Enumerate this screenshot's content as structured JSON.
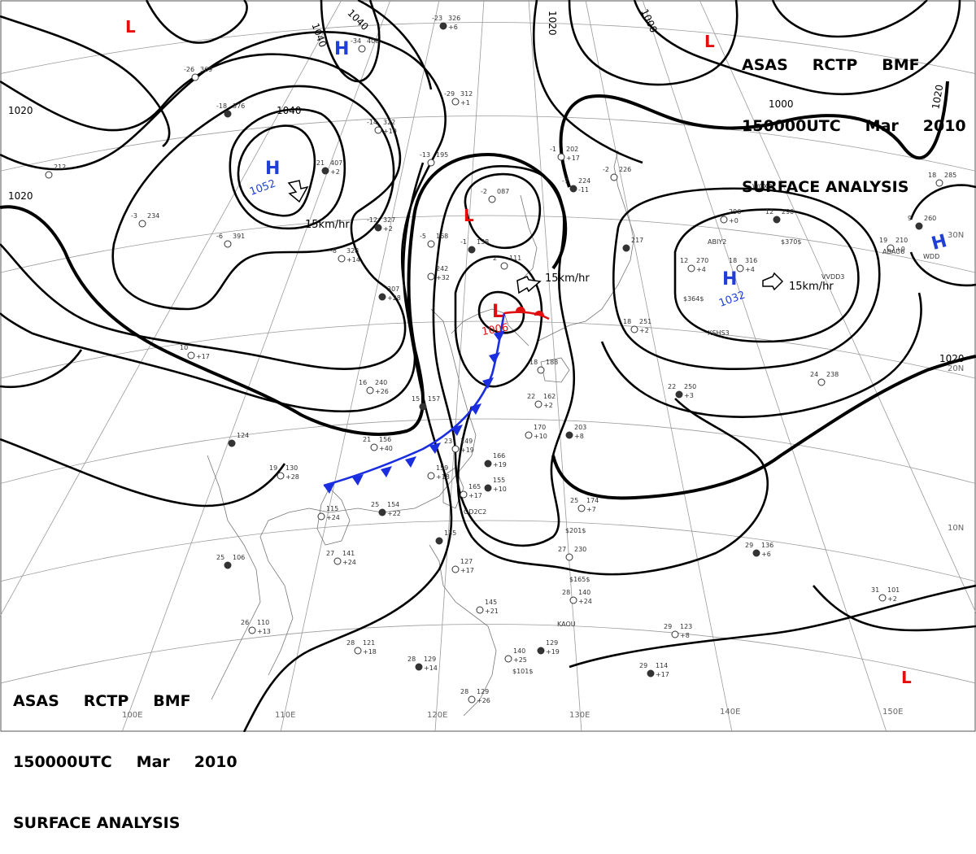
{
  "header": {
    "line1_parts": [
      "ASAS",
      "RCTP",
      "BMF"
    ],
    "line2_parts": [
      "150000UTC",
      "Mar",
      "2010"
    ],
    "line3": "SURFACE ANALYSIS"
  },
  "systems": {
    "highs": [
      {
        "symbol": "H",
        "value": "1052",
        "color": "#1f3fd6"
      },
      {
        "symbol": "H",
        "value": "1032",
        "color": "#1f3fd6"
      },
      {
        "symbol": "H",
        "value": "",
        "color": "#1f3fd6"
      },
      {
        "symbol": "H",
        "value": "",
        "color": "#1f3fd6"
      }
    ],
    "lows": [
      {
        "symbol": "L",
        "value": "1006",
        "color": "#e01010"
      },
      {
        "symbol": "L",
        "value": "",
        "color": "#e01010"
      },
      {
        "symbol": "L",
        "value": "",
        "color": "#e01010"
      },
      {
        "symbol": "L",
        "value": "",
        "color": "#e01010"
      },
      {
        "symbol": "L",
        "value": "",
        "color": "#e01010"
      }
    ],
    "motion_labels": [
      "15km/hr",
      "15km/hr",
      "15km/hr"
    ]
  },
  "isobar_labels": [
    "1020",
    "1040",
    "1040",
    "1040",
    "1020",
    "1000",
    "1000",
    "1020",
    "1020",
    "1020"
  ],
  "longitude_labels": [
    "100E",
    "110E",
    "120E",
    "130E",
    "140E",
    "150E"
  ],
  "latitude_labels": [
    "30N",
    "20N",
    "10N"
  ],
  "front": {
    "type": "stationary",
    "cold_color": "#1a2ee0",
    "warm_color": "#e01010"
  },
  "stations": [
    {
      "t": "-23",
      "p": "326",
      "tend": "+6"
    },
    {
      "t": "-34",
      "p": "406",
      "tend": ""
    },
    {
      "t": "-26",
      "p": "369",
      "tend": ""
    },
    {
      "t": "-18",
      "p": "376",
      "tend": ""
    },
    {
      "t": "-14",
      "p": "322",
      "tend": "+10"
    },
    {
      "t": "-29",
      "p": "312",
      "tend": "+1"
    },
    {
      "t": "-21",
      "p": "407",
      "tend": "+2"
    },
    {
      "t": "-13",
      "p": "195",
      "tend": ""
    },
    {
      "t": "-1",
      "p": "202",
      "tend": "+17"
    },
    {
      "t": "-7",
      "p": "224",
      "tend": "-11"
    },
    {
      "t": "-2",
      "p": "226",
      "tend": ""
    },
    {
      "t": "-2",
      "p": "087",
      "tend": ""
    },
    {
      "t": "-12",
      "p": "327",
      "tend": "+2"
    },
    {
      "t": "-8",
      "p": "328",
      "tend": "+14"
    },
    {
      "t": "-6",
      "p": "391",
      "tend": ""
    },
    {
      "t": "",
      "p": "307",
      "tend": "+28"
    },
    {
      "t": "",
      "p": "242",
      "tend": "+32"
    },
    {
      "t": "-5",
      "p": "168",
      "tend": ""
    },
    {
      "t": "-1",
      "p": "138",
      "tend": ""
    },
    {
      "t": "2",
      "p": "111",
      "tend": ""
    },
    {
      "t": "16",
      "p": "240",
      "tend": "+26"
    },
    {
      "t": "15",
      "p": "157",
      "tend": ""
    },
    {
      "t": "21",
      "p": "156",
      "tend": "+40"
    },
    {
      "t": "23",
      "p": "149",
      "tend": "+19"
    },
    {
      "t": "",
      "p": "166",
      "tend": "+19"
    },
    {
      "t": "",
      "p": "159",
      "tend": "+18"
    },
    {
      "t": "",
      "p": "165",
      "tend": "+17"
    },
    {
      "t": "",
      "p": "155",
      "tend": "+10"
    },
    {
      "t": "22",
      "p": "162",
      "tend": "+2"
    },
    {
      "t": "",
      "p": "170",
      "tend": "+10"
    },
    {
      "t": "",
      "p": "203",
      "tend": "+8"
    },
    {
      "t": "19",
      "p": "130",
      "tend": "+28"
    },
    {
      "t": "",
      "p": "115",
      "tend": "+24"
    },
    {
      "t": "25",
      "p": "154",
      "tend": "+22"
    },
    {
      "t": "25",
      "p": "174",
      "tend": "+7"
    },
    {
      "t": "27",
      "p": "230",
      "tend": ""
    },
    {
      "t": "",
      "p": "135",
      "tend": ""
    },
    {
      "t": "",
      "p": "127",
      "tend": "+17"
    },
    {
      "t": "27",
      "p": "141",
      "tend": "+24"
    },
    {
      "t": "25",
      "p": "106",
      "tend": ""
    },
    {
      "t": "26",
      "p": "110",
      "tend": "+13"
    },
    {
      "t": "28",
      "p": "121",
      "tend": "+18"
    },
    {
      "t": "28",
      "p": "129",
      "tend": "+14"
    },
    {
      "t": "",
      "p": "145",
      "tend": "+21"
    },
    {
      "t": "28",
      "p": "140",
      "tend": "+24"
    },
    {
      "t": "",
      "p": "129",
      "tend": "+19"
    },
    {
      "t": "",
      "p": "140",
      "tend": "+25"
    },
    {
      "t": "28",
      "p": "129",
      "tend": "+26"
    },
    {
      "t": "29",
      "p": "136",
      "tend": "+6"
    },
    {
      "t": "31",
      "p": "101",
      "tend": "+2"
    },
    {
      "t": "29",
      "p": "123",
      "tend": "+8"
    },
    {
      "t": "29",
      "p": "114",
      "tend": "+17"
    },
    {
      "t": "12",
      "p": "270",
      "tend": "+4"
    },
    {
      "t": "18",
      "p": "316",
      "tend": "+4"
    },
    {
      "t": "12",
      "p": "290",
      "tend": ""
    },
    {
      "t": "",
      "p": "296",
      "tend": "+0"
    },
    {
      "t": "18",
      "p": "251",
      "tend": "+2"
    },
    {
      "t": "22",
      "p": "250",
      "tend": "+3"
    },
    {
      "t": "24",
      "p": "238",
      "tend": ""
    },
    {
      "t": "19",
      "p": "210",
      "tend": "+0"
    },
    {
      "t": "9",
      "p": "260",
      "tend": ""
    },
    {
      "t": "18",
      "p": "285",
      "tend": ""
    },
    {
      "t": "18",
      "p": "188",
      "tend": ""
    },
    {
      "t": "",
      "p": "217",
      "tend": ""
    },
    {
      "t": "-3",
      "p": "234",
      "tend": ""
    },
    {
      "t": "10",
      "p": "",
      "tend": "+17"
    },
    {
      "t": "",
      "p": "124",
      "tend": ""
    },
    {
      "t": "",
      "p": "212",
      "tend": ""
    }
  ],
  "station_ids": [
    "ABIY2",
    "WCXB",
    "ABAU6",
    "WDD",
    "VVDD3",
    "XSHS3",
    "KAOU",
    "OD2C2",
    "$364$",
    "$370$",
    "$201$",
    "$165$",
    "$101$"
  ]
}
